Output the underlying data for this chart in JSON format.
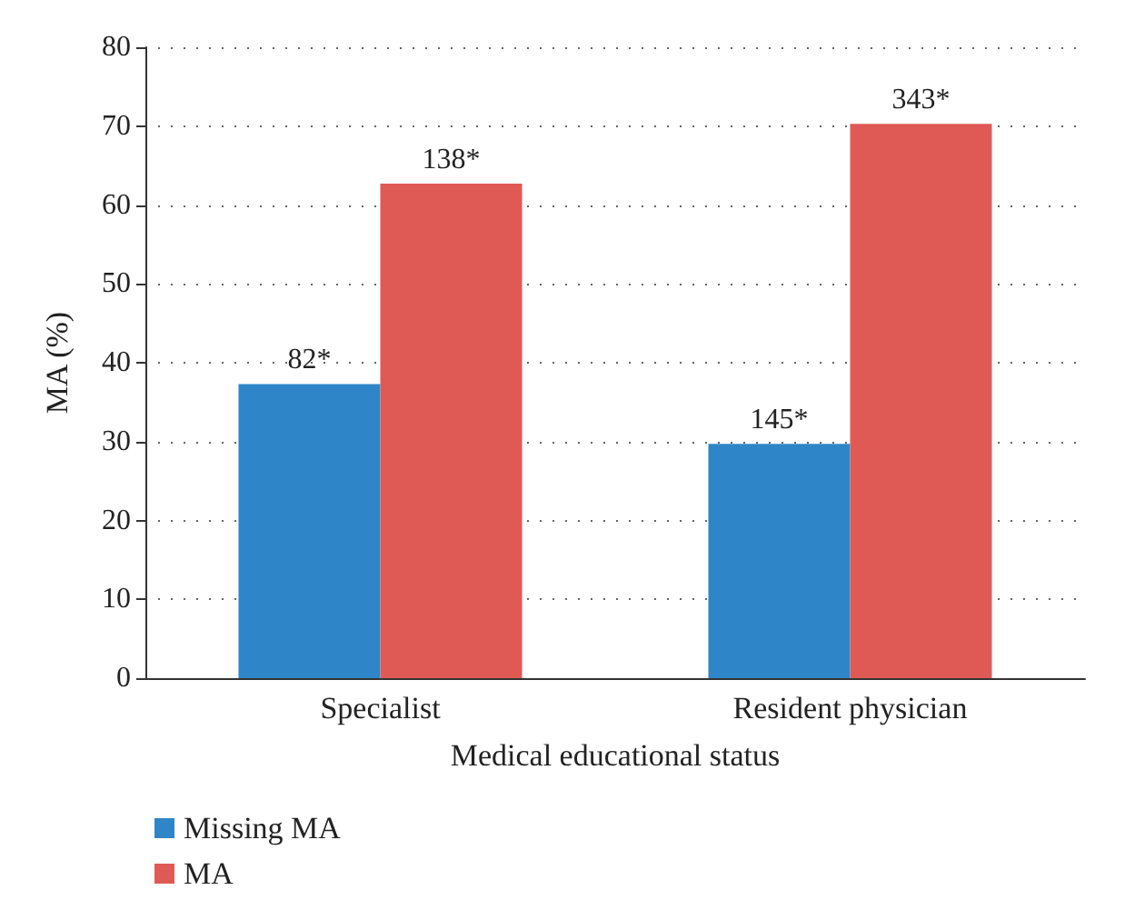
{
  "chart_data": {
    "type": "bar",
    "xlabel": "Medical educational status",
    "ylabel": "MA (%)",
    "categories": [
      "Specialist",
      "Resident physician"
    ],
    "series": [
      {
        "name": "Missing MA",
        "color": "#2e86c8",
        "values": [
          37.3,
          29.7
        ]
      },
      {
        "name": "MA",
        "color": "#e05a55",
        "values": [
          62.7,
          70.3
        ]
      }
    ],
    "annotations": [
      {
        "text": "82*",
        "x": "Specialist",
        "y": 37.3
      },
      {
        "text": "145*",
        "x": "Resident physician",
        "y": 29.7
      },
      {
        "text": "138*",
        "x": "Specialist",
        "y": 62.7
      },
      {
        "text": "343*",
        "x": "Resident physician",
        "y": 70.3
      }
    ],
    "ylim": [
      0,
      80
    ],
    "yticks": [
      0,
      10,
      20,
      30,
      40,
      50,
      60,
      70,
      80
    ],
    "grid": "y",
    "legend": "bottom left"
  }
}
